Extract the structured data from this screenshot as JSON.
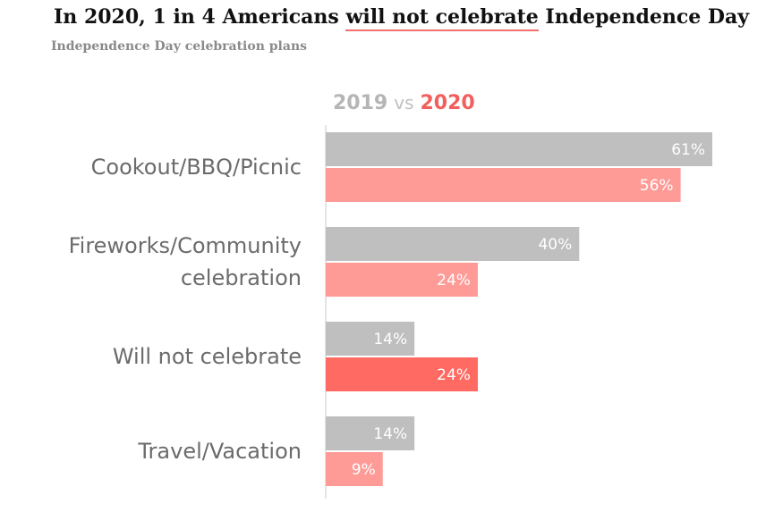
{
  "title": {
    "prefix": "In 2020, 1 in 4 Americans",
    "highlight": "will not celebrate",
    "suffix": "Independence Day"
  },
  "subtitle": "Independence Day celebration plans",
  "legend": {
    "series_a": "2019",
    "vs": "vs",
    "series_b": "2020"
  },
  "colors": {
    "series_2019": "#bfbfbf",
    "series_2020": "#ff9b97",
    "highlight_2020": "#ff6a63",
    "axis": "#c8c8c8"
  },
  "chart_data": {
    "type": "bar",
    "orientation": "horizontal",
    "categories": [
      [
        "Cookout/BBQ/Picnic"
      ],
      [
        "Fireworks/Community",
        "celebration"
      ],
      [
        "Will not celebrate"
      ],
      [
        "Travel/Vacation"
      ]
    ],
    "series": [
      {
        "name": "2019",
        "values": [
          61,
          40,
          14,
          14
        ]
      },
      {
        "name": "2020",
        "values": [
          56,
          24,
          24,
          9
        ]
      }
    ],
    "value_labels": [
      [
        "61%",
        "40%",
        "14%",
        "14%"
      ],
      [
        "56%",
        "24%",
        "24%",
        "9%"
      ]
    ],
    "highlight_category_index": 2,
    "xlim": [
      0,
      61
    ],
    "legend_position": "top"
  }
}
